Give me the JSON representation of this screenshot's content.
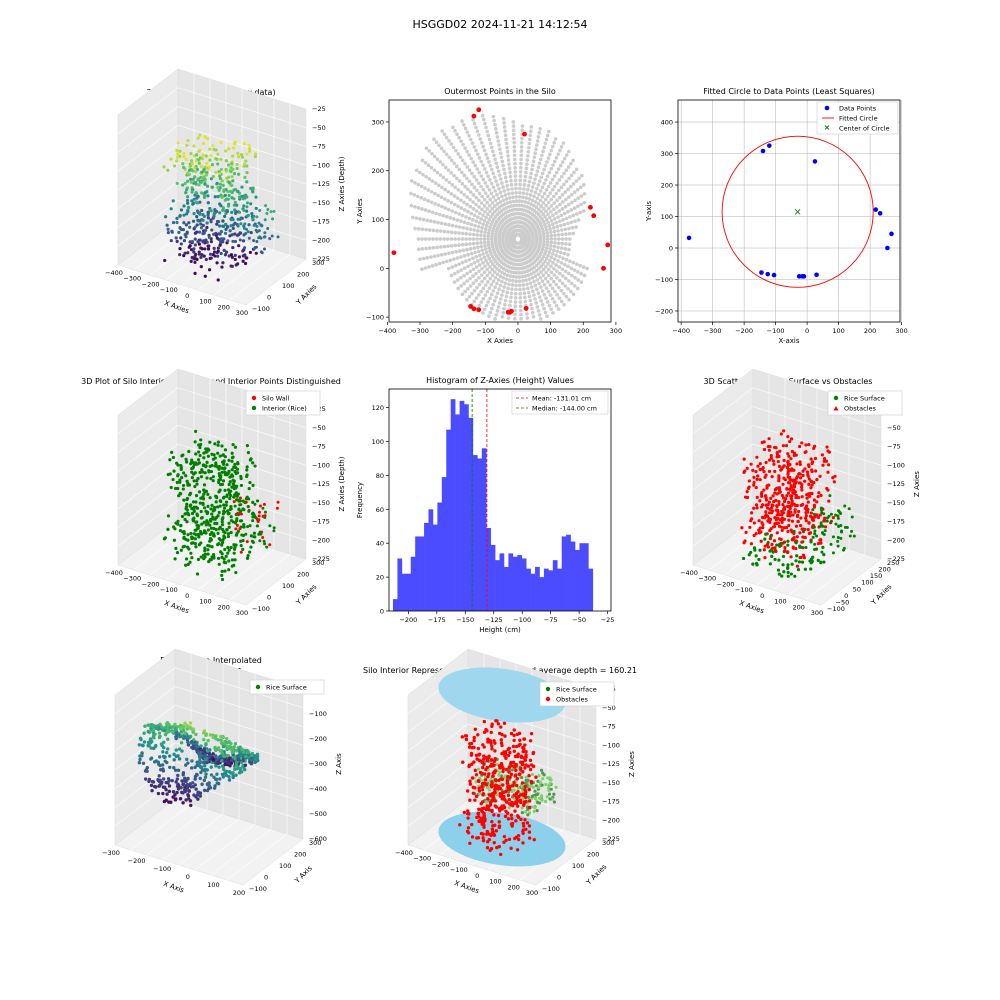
{
  "figure": {
    "suptitle": "HSGGD02 2024-11-21 14:12:54"
  },
  "colors": {
    "grey_points": "#cccccc",
    "red": "#ff0000",
    "blue": "#0000ff",
    "green": "#008000",
    "hist_bar": "#4b4bff",
    "silo_cyan": "#87ceeb",
    "axis": "#000000",
    "grid": "#d9d9d9"
  },
  "chart_data": [
    {
      "id": "raw3d",
      "type": "scatter3d",
      "title": "3D Plot of Silo Interior(row data)",
      "xlabel": "X Axies",
      "ylabel": "Y Axies",
      "zlabel": "Z Axies (Depth)",
      "x_ticks": [
        "−400",
        "−300",
        "−200",
        "−100",
        "0",
        "100",
        "200",
        "300"
      ],
      "y_ticks": [
        "−100",
        "0",
        "100",
        "200",
        "300"
      ],
      "z_ticks": [
        "−25",
        "−50",
        "−75",
        "−100",
        "−125",
        "−150",
        "−175",
        "−200",
        "−225"
      ],
      "colormap": "viridis"
    },
    {
      "id": "outer",
      "type": "scatter",
      "title": "Outermost Points in the Silo",
      "xlabel": "X Axies",
      "ylabel": "Y Axies",
      "xlim": [
        -395,
        285
      ],
      "ylim": [
        -110,
        345
      ],
      "x_ticks": [
        -400,
        -300,
        -200,
        -100,
        0,
        100,
        200,
        300
      ],
      "y_ticks": [
        -100,
        0,
        100,
        200,
        300
      ],
      "x_tick_labels": [
        "−400",
        "−300",
        "−200",
        "−100",
        "0",
        "100",
        "200",
        "300"
      ],
      "y_tick_labels": [
        "−100",
        "0",
        "100",
        "200",
        "300"
      ],
      "outermost_points": [
        [
          -120,
          325
        ],
        [
          -135,
          312
        ],
        [
          20,
          275
        ],
        [
          222,
          125
        ],
        [
          232,
          108
        ],
        [
          -380,
          32
        ],
        [
          275,
          48
        ],
        [
          262,
          0
        ],
        [
          -145,
          -78
        ],
        [
          -135,
          -83
        ],
        [
          -120,
          -85
        ],
        [
          -30,
          -90
        ],
        [
          -25,
          -90
        ],
        [
          -20,
          -88
        ],
        [
          25,
          -82
        ]
      ]
    },
    {
      "id": "circle",
      "type": "scatter",
      "title": "Fitted Circle to Data Points (Least Squares)",
      "xlabel": "X-axis",
      "ylabel": "Y-axis",
      "xlim": [
        -410,
        295
      ],
      "ylim": [
        -235,
        470
      ],
      "x_ticks": [
        -400,
        -300,
        -200,
        -100,
        0,
        100,
        200,
        300
      ],
      "y_ticks": [
        -200,
        -100,
        0,
        100,
        200,
        300,
        400
      ],
      "x_tick_labels": [
        "−400",
        "−300",
        "−200",
        "−100",
        "0",
        "100",
        "200",
        "300"
      ],
      "y_tick_labels": [
        "−200",
        "−100",
        "0",
        "100",
        "200",
        "300",
        "400"
      ],
      "grid": true,
      "legend": [
        "Data Points",
        "Fitted Circle",
        "Center of Circle"
      ],
      "legend_position": "upper right",
      "data_points": [
        [
          -120,
          325
        ],
        [
          -140,
          308
        ],
        [
          25,
          275
        ],
        [
          218,
          122
        ],
        [
          232,
          110
        ],
        [
          -375,
          32
        ],
        [
          268,
          45
        ],
        [
          255,
          0
        ],
        [
          -145,
          -78
        ],
        [
          -125,
          -83
        ],
        [
          -105,
          -86
        ],
        [
          -25,
          -90
        ],
        [
          -15,
          -90
        ],
        [
          -10,
          -90
        ],
        [
          30,
          -85
        ]
      ],
      "circle_center": [
        -30,
        115
      ],
      "circle_radius": 240
    },
    {
      "id": "wall3d",
      "type": "scatter3d",
      "title": "3D Plot of Silo Interior with Wall and Interior Points Distinguished",
      "xlabel": "X Axies",
      "ylabel": "Y Axies",
      "zlabel": "Z Axies (Depth)",
      "legend": [
        "Silo Wall",
        "Interior (Rice)"
      ],
      "x_ticks": [
        "−400",
        "−300",
        "−200",
        "−100",
        "0",
        "100",
        "200",
        "300"
      ],
      "y_ticks": [
        "−100",
        "0",
        "100",
        "200",
        "300"
      ],
      "z_ticks": [
        "−25",
        "−50",
        "−75",
        "−100",
        "−125",
        "−150",
        "−175",
        "−200",
        "−225"
      ]
    },
    {
      "id": "hist",
      "type": "bar",
      "title": "Histogram of Z-Axies (Height) Values",
      "xlabel": "Height (cm)",
      "ylabel": "Frequency",
      "xlim": [
        -217,
        -22
      ],
      "ylim": [
        0,
        131
      ],
      "x_ticks": [
        -200,
        -175,
        -150,
        -125,
        -100,
        -75,
        -50,
        -25
      ],
      "y_ticks": [
        0,
        20,
        40,
        60,
        80,
        100,
        120
      ],
      "x_tick_labels": [
        "−200",
        "−175",
        "−150",
        "−125",
        "−100",
        "−75",
        "−50",
        "−25"
      ],
      "y_tick_labels": [
        "0",
        "20",
        "40",
        "60",
        "80",
        "100",
        "120"
      ],
      "bin_start": -213.5,
      "bin_width": 3.9,
      "values": [
        7,
        31,
        22,
        22,
        32,
        44,
        44,
        52,
        60,
        51,
        64,
        79,
        107,
        125,
        116,
        124,
        122,
        114,
        92,
        90,
        96,
        49,
        39,
        30,
        34,
        26,
        34,
        32,
        33,
        31,
        25,
        22,
        26,
        20,
        25,
        24,
        30,
        25,
        44,
        45,
        41,
        36,
        40,
        40,
        25
      ],
      "mean": -131.01,
      "median": -144.0,
      "legend": [
        "Mean: -131.01 cm",
        "Median: -144.00 cm"
      ],
      "legend_position": "upper right"
    },
    {
      "id": "obst3d",
      "type": "scatter3d",
      "title": "3D Scatter Plot: Rice Surface vs Obstacles",
      "xlabel": "X Axies",
      "ylabel": "Y Axies",
      "zlabel": "Z Axies",
      "legend": [
        "Rice Surface",
        "Obstacles"
      ],
      "x_ticks": [
        "−400",
        "−300",
        "−200",
        "−100",
        "0",
        "100",
        "200",
        "300"
      ],
      "y_ticks": [
        "−100",
        "−50",
        "0",
        "50",
        "100",
        "150",
        "200",
        "250"
      ],
      "z_ticks": [
        "−25",
        "−50",
        "−75",
        "−100",
        "−125",
        "−150",
        "−175",
        "−200",
        "−225"
      ]
    },
    {
      "id": "interp",
      "type": "surface3d",
      "title": "Rice Surface Interpolated",
      "subtitle": "depth = 160.21",
      "xlabel": "X Axis",
      "ylabel": "Y Axis",
      "zlabel": "Z Axis",
      "legend": [
        "Rice Surface"
      ],
      "x_ticks": [
        "−300",
        "−200",
        "−100",
        "0",
        "100",
        "200"
      ],
      "y_ticks": [
        "−100",
        "0",
        "100",
        "200",
        "300"
      ],
      "z_ticks": [
        "0",
        "−100",
        "−200",
        "−300",
        "−400",
        "−500",
        "−600"
      ]
    },
    {
      "id": "silo",
      "type": "scatter3d",
      "title": "Silo Interior Representation using weighted average depth = 160.21",
      "xlabel": "X Axies",
      "ylabel": "Y Axies",
      "zlabel": "Z Axies",
      "legend": [
        "Rice Surface",
        "Obstacles"
      ],
      "x_ticks": [
        "−400",
        "−300",
        "−200",
        "−100",
        "0",
        "100",
        "200",
        "300"
      ],
      "y_ticks": [
        "−100",
        "0",
        "100",
        "200",
        "300"
      ],
      "z_ticks": [
        "−25",
        "−50",
        "−75",
        "−100",
        "−125",
        "−150",
        "−175",
        "−200",
        "−225"
      ]
    }
  ]
}
